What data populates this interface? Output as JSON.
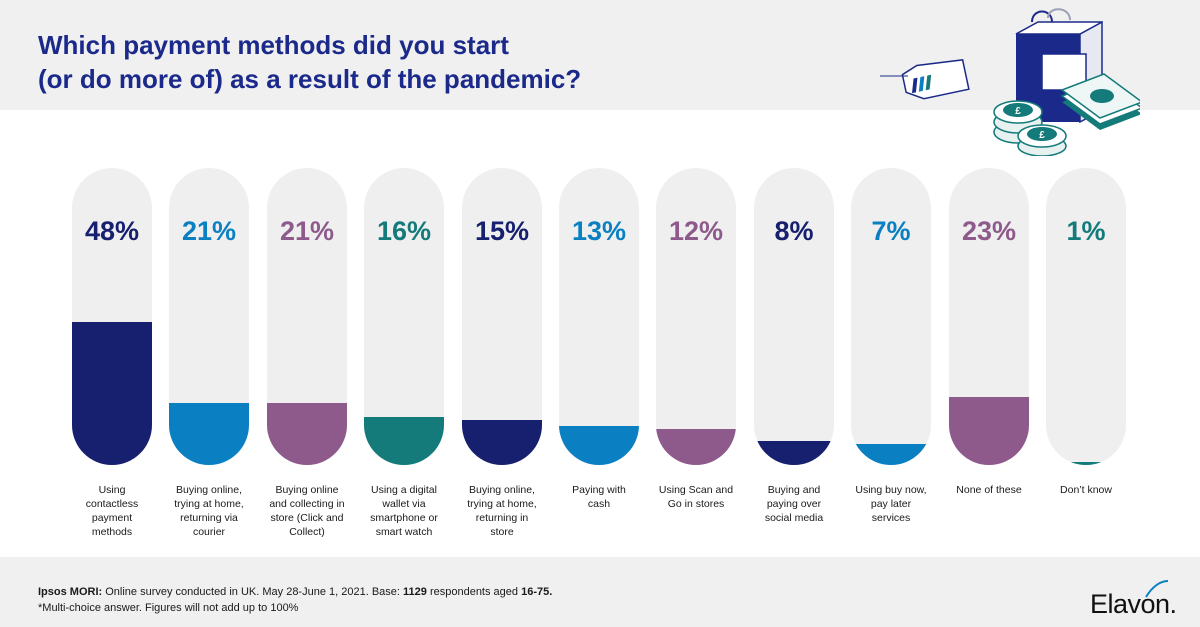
{
  "header": {
    "title_line1": "Which payment methods did you start",
    "title_line2": "(or do more of) as a result of the pandemic?"
  },
  "illustration": {
    "icons": [
      "shopping-bag-icon",
      "price-tag-icon",
      "pound-coin-icon",
      "banknote-icon"
    ],
    "coin_symbol": "£"
  },
  "colors": {
    "navy": "#16206e",
    "blue": "#0a7fc1",
    "purple": "#8e5a8c",
    "teal": "#147a7a",
    "track": "#efefef",
    "header_bg": "#f0f0f0"
  },
  "chart_data": {
    "type": "bar",
    "title": "Which payment methods did you start (or do more of) as a result of the pandemic?",
    "unit": "%",
    "ylim": [
      0,
      100
    ],
    "categories": [
      "Using contactless payment methods",
      "Buying online, trying at home, returning via courier",
      "Buying online and collecting in store (Click and Collect)",
      "Using a digital wallet via smartphone or smart watch",
      "Buying online, trying at home, returning in store",
      "Paying with cash",
      "Using Scan and Go in stores",
      "Buying and paying over social media",
      "Using buy now, pay later services",
      "None of these",
      "Don’t know"
    ],
    "category_lines": [
      [
        "Using",
        "contactless",
        "payment",
        "methods"
      ],
      [
        "Buying online,",
        "trying at home,",
        "returning via",
        "courier"
      ],
      [
        "Buying online",
        "and collecting in",
        "store (Click and",
        "Collect)"
      ],
      [
        "Using a digital",
        "wallet via",
        "smartphone or",
        "smart watch"
      ],
      [
        "Buying online,",
        "trying at home,",
        "returning in",
        "store"
      ],
      [
        "Paying with",
        "cash"
      ],
      [
        "Using Scan and",
        "Go in stores"
      ],
      [
        "Buying and",
        "paying over",
        "social media"
      ],
      [
        "Using buy now,",
        "pay later",
        "services"
      ],
      [
        "None of these"
      ],
      [
        "Don’t know"
      ]
    ],
    "values": [
      48,
      21,
      21,
      16,
      15,
      13,
      12,
      8,
      7,
      23,
      1
    ],
    "labels": [
      "48%",
      "21%",
      "21%",
      "16%",
      "15%",
      "13%",
      "12%",
      "8%",
      "7%",
      "23%",
      "1%"
    ],
    "colors": [
      "#16206e",
      "#0a7fc1",
      "#8e5a8c",
      "#147a7a",
      "#16206e",
      "#0a7fc1",
      "#8e5a8c",
      "#16206e",
      "#0a7fc1",
      "#8e5a8c",
      "#147a7a"
    ]
  },
  "footer": {
    "source_org": "Ipsos MORI:",
    "source_text1": " Online survey conducted in UK. May 28-June 1, 2021. Base: ",
    "base_count": "1129",
    "source_text2": " respondents aged ",
    "age_range": "16-75.",
    "note": "*Multi-choice answer. Figures will not add up to 100%",
    "logo": "Elavon."
  }
}
